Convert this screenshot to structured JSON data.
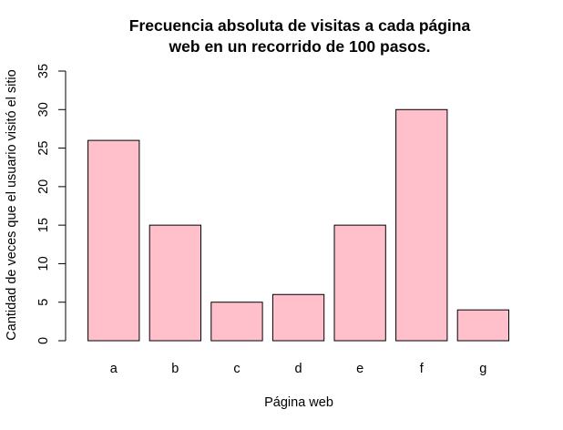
{
  "chart_data": {
    "type": "bar",
    "title": [
      "Frecuencia absoluta de visitas a cada página",
      "web en un recorrido de 100 pasos."
    ],
    "xlabel": "Página web",
    "ylabel": "Cantidad de veces que el usuario visitó el sitio",
    "categories": [
      "a",
      "b",
      "c",
      "d",
      "e",
      "f",
      "g"
    ],
    "values": [
      26,
      15,
      5,
      6,
      15,
      30,
      4
    ],
    "ylim": [
      0,
      35
    ],
    "yticks": [
      0,
      5,
      10,
      15,
      20,
      25,
      30,
      35
    ],
    "grid": false,
    "bar_color": "#ffc0cb",
    "bar_border": "#000000"
  }
}
